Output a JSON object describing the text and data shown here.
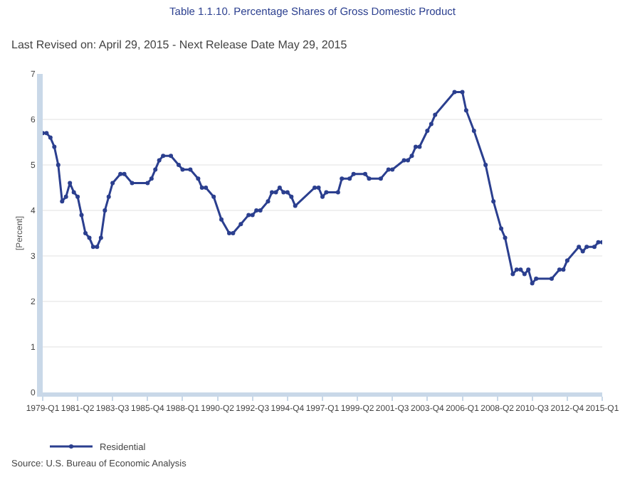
{
  "chart_data": {
    "type": "line",
    "title": "Table 1.1.10. Percentage Shares of Gross Domestic Product",
    "subtitle": "Last Revised on: April 29, 2015 - Next Release Date May 29, 2015",
    "ylabel": "[Percent]",
    "annotations": [
      "Source: U.S. Bureau of Economic Analysis"
    ],
    "x": [
      "1979-01",
      "1979-04",
      "1979-07",
      "1979-10",
      "1980-01",
      "1980-04",
      "1980-07",
      "1980-10",
      "1981-01",
      "1981-04",
      "1981-07",
      "1981-10",
      "1982-01",
      "1982-04",
      "1982-07",
      "1982-10",
      "1983-01",
      "1983-04",
      "1983-07",
      "1984-01",
      "1984-04",
      "1984-10",
      "1985-10",
      "1986-01",
      "1986-04",
      "1986-07",
      "1986-10",
      "1987-04",
      "1987-10",
      "1988-01",
      "1988-07",
      "1989-01",
      "1989-04",
      "1989-07",
      "1990-01",
      "1990-07",
      "1991-01",
      "1991-04",
      "1991-10",
      "1992-04",
      "1992-07",
      "1992-10",
      "1993-01",
      "1993-07",
      "1993-10",
      "1994-01",
      "1994-04",
      "1994-07",
      "1994-10",
      "1995-01",
      "1995-04",
      "1996-07",
      "1996-10",
      "1997-01",
      "1997-04",
      "1998-01",
      "1998-04",
      "1998-10",
      "1999-01",
      "1999-10",
      "2000-01",
      "2000-10",
      "2001-04",
      "2001-07",
      "2002-04",
      "2002-07",
      "2002-10",
      "2003-01",
      "2003-04",
      "2003-10",
      "2004-01",
      "2004-04",
      "2005-07",
      "2006-01",
      "2006-04",
      "2006-10",
      "2007-07",
      "2008-01",
      "2008-07",
      "2008-10",
      "2009-04",
      "2009-07",
      "2009-10",
      "2010-01",
      "2010-04",
      "2010-07",
      "2010-10",
      "2011-10",
      "2012-04",
      "2012-07",
      "2012-10",
      "2013-07",
      "2013-10",
      "2014-01",
      "2014-07",
      "2014-10",
      "2015-01"
    ],
    "series": [
      {
        "name": "Residential",
        "color": "#2b3f8f",
        "values": [
          5.7,
          5.7,
          5.6,
          5.4,
          5.0,
          4.2,
          4.3,
          4.6,
          4.4,
          4.3,
          3.9,
          3.5,
          3.4,
          3.2,
          3.2,
          3.4,
          4.0,
          4.3,
          4.6,
          4.8,
          4.8,
          4.6,
          4.6,
          4.7,
          4.9,
          5.1,
          5.2,
          5.2,
          5.0,
          4.9,
          4.9,
          4.7,
          4.5,
          4.5,
          4.3,
          3.8,
          3.5,
          3.5,
          3.7,
          3.9,
          3.9,
          4.0,
          4.0,
          4.2,
          4.4,
          4.4,
          4.5,
          4.4,
          4.4,
          4.3,
          4.1,
          4.5,
          4.5,
          4.3,
          4.4,
          4.4,
          4.7,
          4.7,
          4.8,
          4.8,
          4.7,
          4.7,
          4.9,
          4.9,
          5.1,
          5.1,
          5.2,
          5.4,
          5.4,
          5.75,
          5.9,
          6.1,
          6.6,
          6.6,
          6.2,
          5.75,
          5.0,
          4.2,
          3.6,
          3.4,
          2.6,
          2.7,
          2.7,
          2.6,
          2.7,
          2.4,
          2.5,
          2.5,
          2.7,
          2.7,
          2.9,
          3.2,
          3.1,
          3.2,
          3.2,
          3.3,
          3.3
        ]
      }
    ],
    "xlim": [
      "1979-01",
      "2015-01"
    ],
    "xticks": [
      {
        "value": "1979-01",
        "label": "1979-Q1"
      },
      {
        "value": "1981-04",
        "label": "1981-Q2"
      },
      {
        "value": "1983-07",
        "label": "1983-Q3"
      },
      {
        "value": "1985-10",
        "label": "1985-Q4"
      },
      {
        "value": "1988-01",
        "label": "1988-Q1"
      },
      {
        "value": "1990-04",
        "label": "1990-Q2"
      },
      {
        "value": "1992-07",
        "label": "1992-Q3"
      },
      {
        "value": "1994-10",
        "label": "1994-Q4"
      },
      {
        "value": "1997-01",
        "label": "1997-Q1"
      },
      {
        "value": "1999-04",
        "label": "1999-Q2"
      },
      {
        "value": "2001-07",
        "label": "2001-Q3"
      },
      {
        "value": "2003-10",
        "label": "2003-Q4"
      },
      {
        "value": "2006-01",
        "label": "2006-Q1"
      },
      {
        "value": "2008-04",
        "label": "2008-Q2"
      },
      {
        "value": "2010-07",
        "label": "2010-Q3"
      },
      {
        "value": "2012-10",
        "label": "2012-Q4"
      },
      {
        "value": "2015-01",
        "label": "2015-Q1"
      }
    ],
    "ylim": [
      0,
      7
    ],
    "yticks": [
      0,
      1,
      2,
      3,
      4,
      5,
      6,
      7
    ],
    "grid": "y",
    "legend": "bottom left",
    "marker": "circle",
    "line_style": "solid"
  }
}
